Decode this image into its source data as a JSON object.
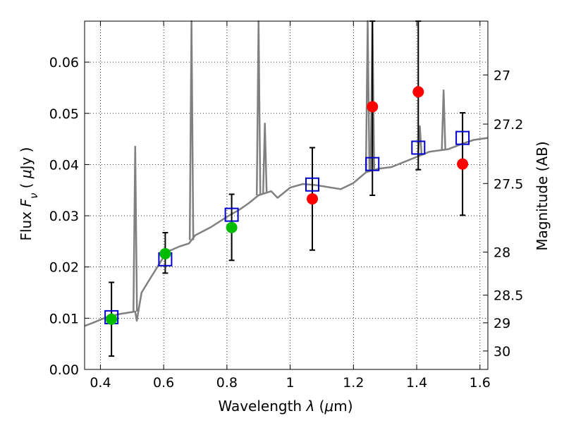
{
  "chart_data": {
    "type": "scatter",
    "xlabel": "Wavelength  λ (μm)",
    "ylabel": "Flux  Fν  ( μJy )",
    "y2label": "Magnitude (AB)",
    "xlim": [
      0.35,
      1.625
    ],
    "ylim": [
      0.0,
      0.068
    ],
    "grid": true,
    "x_ticks": [
      0.4,
      0.6,
      0.8,
      1.0,
      1.2,
      1.4,
      1.6
    ],
    "x_tick_labels": [
      "0.4",
      "0.6",
      "0.8",
      "1",
      "1.2",
      "1.4",
      "1.6"
    ],
    "y_ticks": [
      0.0,
      0.01,
      0.02,
      0.03,
      0.04,
      0.05,
      0.06
    ],
    "y_tick_labels": [
      "0.00",
      "0.01",
      "0.02",
      "0.03",
      "0.04",
      "0.05",
      "0.06"
    ],
    "y2_ticks": [
      {
        "label": "27",
        "flux": 0.0575
      },
      {
        "label": "27.2",
        "flux": 0.0479
      },
      {
        "label": "27.5",
        "flux": 0.0363
      },
      {
        "label": "28",
        "flux": 0.0229
      },
      {
        "label": "28.5",
        "flux": 0.0145
      },
      {
        "label": "29",
        "flux": 0.0091
      },
      {
        "label": "30",
        "flux": 0.0036
      }
    ],
    "colors": {
      "spectrum": "#808080",
      "model_squares": "#0000cc",
      "green_points": "#00bb00",
      "red_points": "#ff0000",
      "errorbars": "#000000",
      "grid": "#000000"
    },
    "series": [
      {
        "marker": "open-square",
        "x": [
          0.435,
          0.605,
          0.815,
          1.07,
          1.26,
          1.405,
          1.545
        ],
        "y": [
          0.0102,
          0.0215,
          0.0302,
          0.0361,
          0.0401,
          0.0433,
          0.0452
        ]
      },
      {
        "marker": "filled-circle",
        "color": "green",
        "x": [
          0.435,
          0.605,
          0.815
        ],
        "y": [
          0.0098,
          0.0226,
          0.0277
        ]
      },
      {
        "marker": "filled-circle",
        "color": "red",
        "x": [
          1.07,
          1.26,
          1.405,
          1.545
        ],
        "y": [
          0.0333,
          0.0513,
          0.0542,
          0.0401
        ]
      }
    ],
    "errorbars": [
      {
        "x": 0.435,
        "low": 0.0026,
        "high": 0.017
      },
      {
        "x": 0.605,
        "low": 0.0188,
        "high": 0.0267
      },
      {
        "x": 0.815,
        "low": 0.0213,
        "high": 0.0342
      },
      {
        "x": 1.07,
        "low": 0.0233,
        "high": 0.0433
      },
      {
        "x": 1.26,
        "low": 0.034,
        "high": 0.068
      },
      {
        "x": 1.405,
        "low": 0.039,
        "high": 0.068
      },
      {
        "x": 1.545,
        "low": 0.0301,
        "high": 0.0501
      }
    ],
    "spectrum": {
      "continuum": [
        [
          0.35,
          0.0085
        ],
        [
          0.38,
          0.0092
        ],
        [
          0.42,
          0.0102
        ],
        [
          0.46,
          0.0108
        ],
        [
          0.5,
          0.0112
        ],
        [
          0.51,
          0.0113
        ],
        [
          0.515,
          0.0095
        ],
        [
          0.53,
          0.015
        ],
        [
          0.55,
          0.017
        ],
        [
          0.58,
          0.02
        ],
        [
          0.6,
          0.022
        ],
        [
          0.62,
          0.0232
        ],
        [
          0.65,
          0.024
        ],
        [
          0.68,
          0.0246
        ],
        [
          0.7,
          0.0262
        ],
        [
          0.75,
          0.0278
        ],
        [
          0.78,
          0.029
        ],
        [
          0.8,
          0.0298
        ],
        [
          0.84,
          0.0312
        ],
        [
          0.87,
          0.0325
        ],
        [
          0.9,
          0.034
        ],
        [
          0.94,
          0.0348
        ],
        [
          0.96,
          0.0335
        ],
        [
          1.0,
          0.0355
        ],
        [
          1.04,
          0.0362
        ],
        [
          1.08,
          0.036
        ],
        [
          1.12,
          0.0356
        ],
        [
          1.16,
          0.0352
        ],
        [
          1.2,
          0.0364
        ],
        [
          1.24,
          0.0385
        ],
        [
          1.28,
          0.0392
        ],
        [
          1.32,
          0.0395
        ],
        [
          1.36,
          0.0405
        ],
        [
          1.4,
          0.0415
        ],
        [
          1.44,
          0.0425
        ],
        [
          1.5,
          0.043
        ],
        [
          1.55,
          0.0442
        ],
        [
          1.58,
          0.0448
        ],
        [
          1.625,
          0.0452
        ]
      ],
      "emission_lines": [
        {
          "x": 0.51,
          "peak": 0.0435
        },
        {
          "x": 0.688,
          "peak": 0.068
        },
        {
          "x": 0.9,
          "peak": 0.068
        },
        {
          "x": 0.92,
          "peak": 0.048
        },
        {
          "x": 1.245,
          "peak": 0.068
        },
        {
          "x": 1.26,
          "peak": 0.068
        },
        {
          "x": 1.41,
          "peak": 0.0475
        },
        {
          "x": 1.485,
          "peak": 0.0545
        }
      ]
    }
  }
}
